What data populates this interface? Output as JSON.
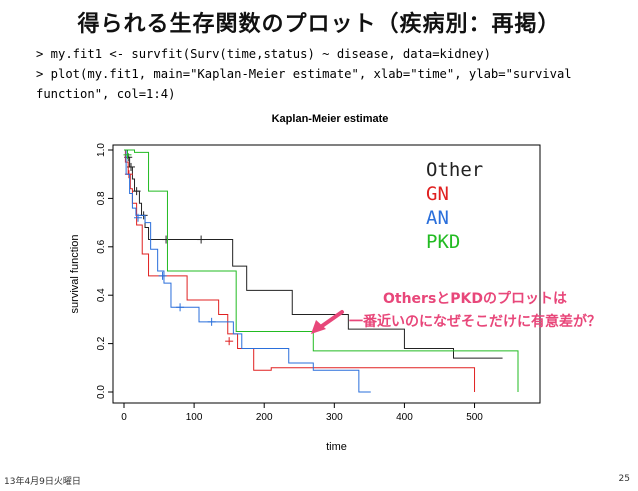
{
  "slide": {
    "title": "得られる生存関数のプロット（疾病別：再掲）",
    "code_lines": [
      "> my.fit1 <- survfit(Surv(time,status) ~ disease, data=kidney)",
      "> plot(my.fit1, main=\"Kaplan-Meier estimate\", xlab=\"time\", ylab=\"survival",
      "function\", col=1:4)"
    ],
    "annotation_lines": [
      "OthersとPKDのプロットは",
      "一番近いのになぜそこだけに有意差が？"
    ],
    "annotation_color": "#e8477a",
    "footer_date": "13年4月9日火曜日",
    "page_number": "25"
  },
  "legend_overlay": [
    {
      "label": "Other",
      "color": "#222222"
    },
    {
      "label": "GN",
      "color": "#e02020"
    },
    {
      "label": "AN",
      "color": "#2a6fdb"
    },
    {
      "label": "PKD",
      "color": "#22bb22"
    }
  ],
  "chart_data": {
    "type": "line",
    "step": true,
    "title": "Kaplan-Meier estimate",
    "xlabel": "time",
    "ylabel": "survival function",
    "xlim": [
      0,
      562
    ],
    "ylim": [
      0,
      1
    ],
    "x_ticks": [
      0,
      100,
      200,
      300,
      400,
      500
    ],
    "y_ticks": [
      0.0,
      0.2,
      0.4,
      0.6,
      0.8,
      1.0
    ],
    "series": [
      {
        "name": "Other",
        "color": "#222222",
        "points": [
          [
            0,
            1.0
          ],
          [
            5,
            0.97
          ],
          [
            8,
            0.93
          ],
          [
            12,
            0.88
          ],
          [
            15,
            0.83
          ],
          [
            22,
            0.78
          ],
          [
            25,
            0.73
          ],
          [
            30,
            0.68
          ],
          [
            35,
            0.63
          ],
          [
            155,
            0.52
          ],
          [
            175,
            0.42
          ],
          [
            240,
            0.32
          ],
          [
            320,
            0.26
          ],
          [
            400,
            0.18
          ],
          [
            470,
            0.14
          ],
          [
            540,
            0.14
          ]
        ],
        "censored": [
          [
            6,
            0.97
          ],
          [
            10,
            0.93
          ],
          [
            18,
            0.83
          ],
          [
            28,
            0.73
          ],
          [
            60,
            0.63
          ],
          [
            110,
            0.63
          ]
        ]
      },
      {
        "name": "GN",
        "color": "#e02020",
        "points": [
          [
            0,
            1.0
          ],
          [
            2,
            0.95
          ],
          [
            6,
            0.9
          ],
          [
            9,
            0.84
          ],
          [
            12,
            0.78
          ],
          [
            18,
            0.69
          ],
          [
            26,
            0.57
          ],
          [
            35,
            0.48
          ],
          [
            68,
            0.48
          ],
          [
            90,
            0.38
          ],
          [
            135,
            0.32
          ],
          [
            148,
            0.24
          ],
          [
            162,
            0.18
          ],
          [
            185,
            0.09
          ],
          [
            210,
            0.1
          ],
          [
            500,
            0.0
          ]
        ],
        "censored": [
          [
            7,
            0.9
          ],
          [
            150,
            0.21
          ]
        ]
      },
      {
        "name": "AN",
        "color": "#2a6fdb",
        "points": [
          [
            0,
            1.0
          ],
          [
            3,
            0.9
          ],
          [
            8,
            0.82
          ],
          [
            12,
            0.76
          ],
          [
            17,
            0.73
          ],
          [
            30,
            0.7
          ],
          [
            38,
            0.59
          ],
          [
            48,
            0.5
          ],
          [
            57,
            0.45
          ],
          [
            67,
            0.35
          ],
          [
            94,
            0.35
          ],
          [
            107,
            0.29
          ],
          [
            135,
            0.29
          ],
          [
            156,
            0.24
          ],
          [
            168,
            0.18
          ],
          [
            235,
            0.12
          ],
          [
            270,
            0.09
          ],
          [
            335,
            0.0
          ],
          [
            352,
            0.0
          ]
        ],
        "censored": [
          [
            20,
            0.72
          ],
          [
            55,
            0.48
          ],
          [
            80,
            0.35
          ],
          [
            125,
            0.29
          ]
        ]
      },
      {
        "name": "PKD",
        "color": "#22bb22",
        "points": [
          [
            0,
            1.0
          ],
          [
            12,
            1.0
          ],
          [
            15,
            0.99
          ],
          [
            30,
            0.99
          ],
          [
            35,
            0.83
          ],
          [
            55,
            0.83
          ],
          [
            62,
            0.5
          ],
          [
            160,
            0.25
          ],
          [
            270,
            0.17
          ],
          [
            562,
            0.17
          ],
          [
            562,
            0.0
          ]
        ],
        "censored": [
          [
            5,
            0.98
          ]
        ]
      }
    ]
  }
}
